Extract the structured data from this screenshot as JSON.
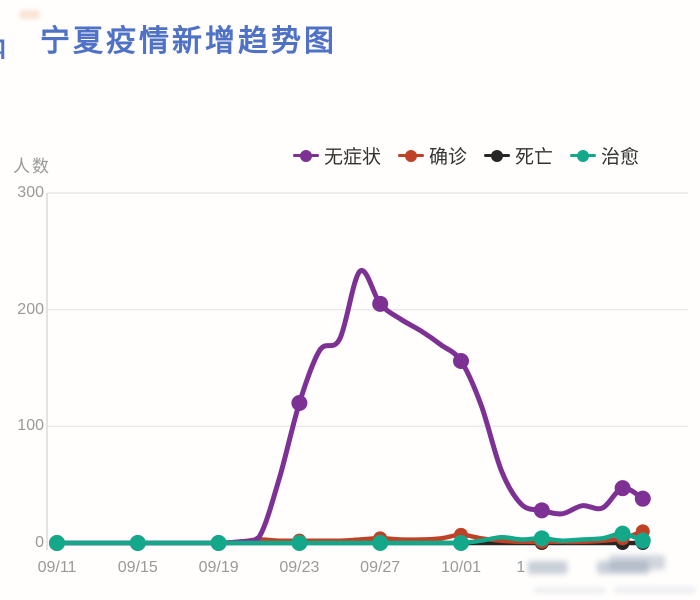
{
  "page": {
    "title": "宁夏疫情新增趋势图",
    "title_color": "#4f71c6",
    "background": "#fffefd"
  },
  "y_axis": {
    "title": "人数",
    "ticks": [
      300,
      200,
      100,
      0
    ],
    "color": "#999999"
  },
  "x_axis": {
    "ticks": [
      {
        "text": "09/11",
        "obscured": false,
        "visible_part": "09/11"
      },
      {
        "text": "09/15",
        "obscured": false,
        "visible_part": "09/15"
      },
      {
        "text": "09/19",
        "obscured": false,
        "visible_part": "09/19"
      },
      {
        "text": "09/23",
        "obscured": false,
        "visible_part": "09/23"
      },
      {
        "text": "09/27",
        "obscured": false,
        "visible_part": "09/27"
      },
      {
        "text": "10/01",
        "obscured": false,
        "visible_part": "10/01"
      },
      {
        "text": "10/05",
        "obscured": true,
        "visible_part": "1"
      },
      {
        "text": "10/09",
        "obscured": true,
        "visible_part": ""
      }
    ],
    "color": "#999999"
  },
  "legend": {
    "items": [
      {
        "label": "无症状",
        "color": "#7d3194"
      },
      {
        "label": "确诊",
        "color": "#bf4226"
      },
      {
        "label": "死亡",
        "color": "#262626"
      },
      {
        "label": "治愈",
        "color": "#14a88b"
      }
    ]
  },
  "chart_data": {
    "type": "line",
    "title": "宁夏疫情新增趋势图",
    "xlabel": "",
    "ylabel": "人数",
    "ylim": [
      0,
      300
    ],
    "grid": true,
    "legend_position": "top",
    "marker_every": 4,
    "x": [
      "09/11",
      "09/12",
      "09/13",
      "09/14",
      "09/15",
      "09/16",
      "09/17",
      "09/18",
      "09/19",
      "09/20",
      "09/21",
      "09/22",
      "09/23",
      "09/24",
      "09/25",
      "09/26",
      "09/27",
      "09/28",
      "09/29",
      "09/30",
      "10/01",
      "10/02",
      "10/03",
      "10/04",
      "10/05",
      "10/06",
      "10/07",
      "10/08",
      "10/09",
      "10/10"
    ],
    "series": [
      {
        "name": "无症状",
        "color": "#7d3194",
        "line_width": 5,
        "marker_radius": 8,
        "values": [
          0,
          0,
          0,
          0,
          0,
          0,
          0,
          0,
          0,
          1,
          5,
          55,
          120,
          165,
          175,
          233,
          205,
          192,
          182,
          170,
          156,
          118,
          62,
          33,
          28,
          25,
          32,
          30,
          47,
          38
        ]
      },
      {
        "name": "确诊",
        "color": "#bf4226",
        "line_width": 4.5,
        "marker_radius": 7,
        "values": [
          0,
          0,
          0,
          0,
          0,
          0,
          0,
          0,
          0,
          1,
          3,
          2,
          2,
          2,
          2,
          3,
          4,
          3,
          3,
          4,
          7,
          4,
          2,
          1,
          1,
          1,
          1,
          2,
          4,
          10
        ]
      },
      {
        "name": "死亡",
        "color": "#262626",
        "line_width": 4.5,
        "marker_radius": 7,
        "values": [
          0,
          0,
          0,
          0,
          0,
          0,
          0,
          0,
          0,
          0,
          0,
          0,
          0,
          0,
          0,
          0,
          0,
          0,
          0,
          0,
          0,
          0,
          0,
          0,
          0,
          0,
          0,
          0,
          0,
          0
        ]
      },
      {
        "name": "治愈",
        "color": "#14a88b",
        "line_width": 4.5,
        "marker_radius": 8,
        "values": [
          0,
          0,
          0,
          0,
          0,
          0,
          0,
          0,
          0,
          0,
          0,
          0,
          0,
          0,
          0,
          0,
          0,
          0,
          0,
          0,
          0,
          2,
          5,
          3,
          4,
          2,
          3,
          4,
          8,
          2
        ]
      }
    ],
    "draw_order": [
      2,
      1,
      0,
      3
    ],
    "grid_color": "#e9e9e9",
    "axis_line_color": "#dcdcdc"
  }
}
